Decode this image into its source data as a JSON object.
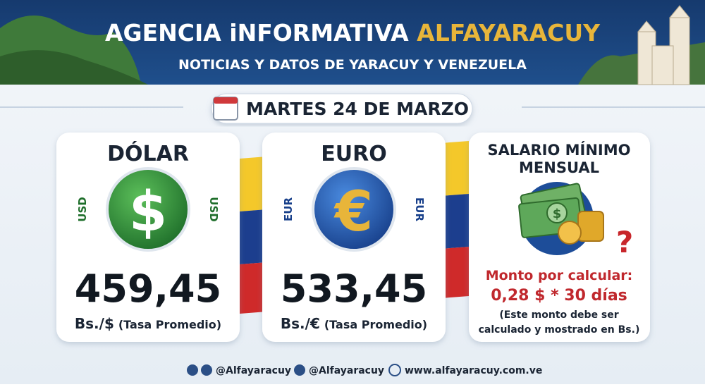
{
  "header": {
    "title": "AGENCIA iNFORMATIVA",
    "brand": "ALFAYARACUY",
    "subtitle": "NOTICIAS Y DATOS DE YARACUY Y VENEZUELA"
  },
  "date": "MARTES 24 DE MARZO",
  "cards": [
    {
      "title": "DÓLAR",
      "code": "USD",
      "symbol": "$",
      "value": "459,45",
      "unit": "Bs./$",
      "note": "(Tasa Promedio)"
    },
    {
      "title": "EURO",
      "code": "EUR",
      "symbol": "€",
      "value": "533,45",
      "unit": "Bs./€",
      "note": "(Tasa Promedio)"
    }
  ],
  "salary": {
    "title_lines": [
      "SALARIO MÍNIMO",
      "MENSUAL"
    ],
    "symbol": "$",
    "question": "?",
    "label": "Monto por calcular:",
    "formula": "0,28 $ * 30 días",
    "note_lines": [
      "(Este monto debe ser",
      "calculado y mostrado en Bs.)"
    ]
  },
  "footer": {
    "telegram_instagram": "@Alfayaracuy",
    "twitter": "@Alfayaracuy",
    "website": "www.alfayaracuy.com.ve"
  }
}
